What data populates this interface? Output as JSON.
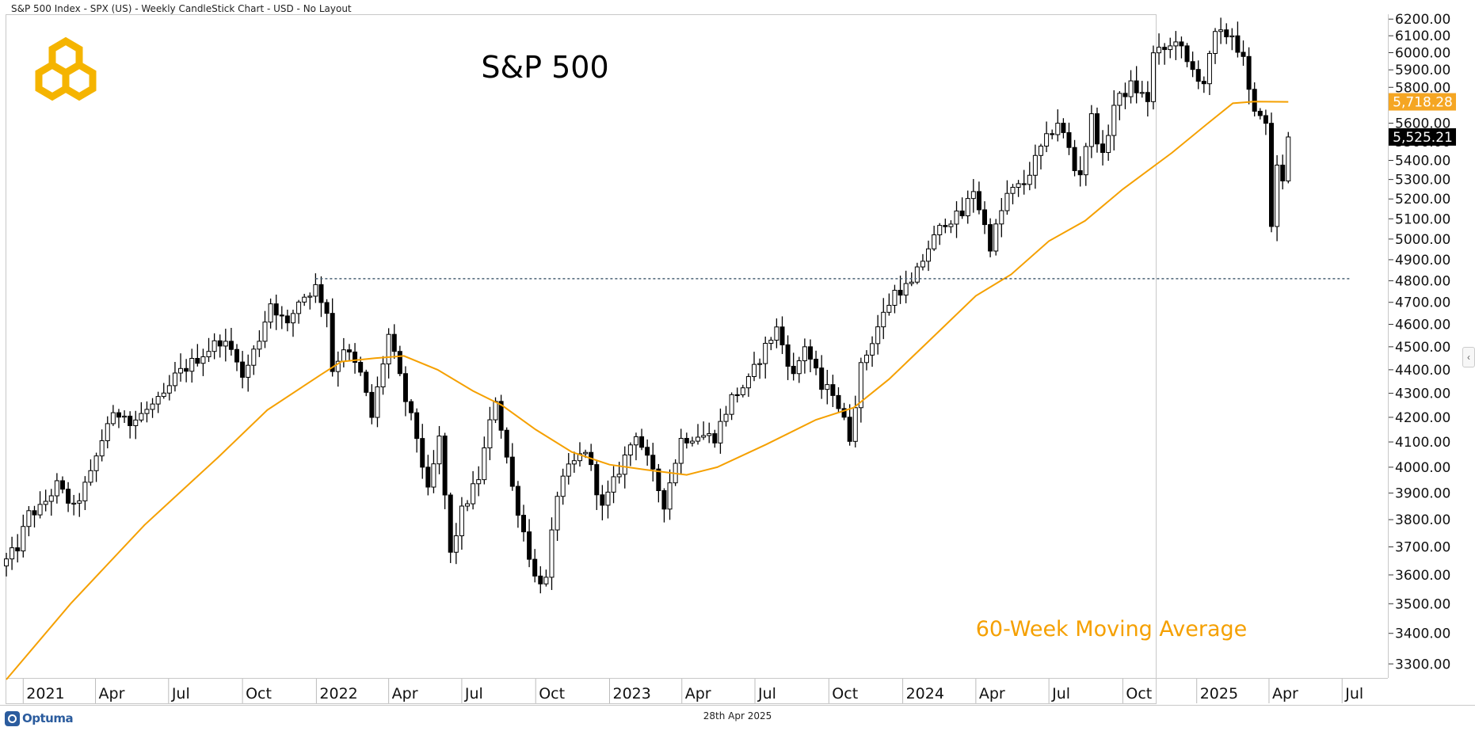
{
  "header": {
    "title": "S&P 500 Index - SPX (US) - Weekly CandleStick Chart - USD - No Layout"
  },
  "footer": {
    "date": "28th Apr 2025",
    "brand": "Optuma"
  },
  "colors": {
    "candle": "#000000",
    "ma": "#f5a000",
    "support": "#4a6276",
    "price_label_bg": "#000000",
    "ma_label_bg": "#f5a623",
    "logo": "#f5b400"
  },
  "chart_data": {
    "type": "candlestick",
    "title": "S&P 500",
    "annotation": "60-Week Moving Average",
    "y_ticks": [
      3300,
      3400,
      3500,
      3600,
      3700,
      3800,
      3900,
      4000,
      4100,
      4200,
      4300,
      4400,
      4500,
      4600,
      4700,
      4800,
      4900,
      5000,
      5100,
      5200,
      5300,
      5400,
      5500,
      5600,
      5700,
      5800,
      5900,
      6000,
      6100,
      6200
    ],
    "y_tick_labels": [
      "3300.00",
      "3400.00",
      "3500.00",
      "3600.00",
      "3700.00",
      "3800.00",
      "3900.00",
      "4000.00",
      "4100.00",
      "4200.00",
      "4300.00",
      "4400.00",
      "4500.00",
      "4600.00",
      "4700.00",
      "4800.00",
      "4900.00",
      "5000.00",
      "5100.00",
      "5200.00",
      "5300.00",
      "5400.00",
      "5500.00",
      "5600.00",
      "5700.00",
      "5800.00",
      "5900.00",
      "6000.00",
      "6100.00",
      "6200.00"
    ],
    "x_ticks": [
      {
        "label": "2021",
        "date": "2021-01"
      },
      {
        "label": "Apr",
        "date": "2021-04"
      },
      {
        "label": "Jul",
        "date": "2021-07"
      },
      {
        "label": "Oct",
        "date": "2021-10"
      },
      {
        "label": "2022",
        "date": "2022-01"
      },
      {
        "label": "Apr",
        "date": "2022-04"
      },
      {
        "label": "Jul",
        "date": "2022-07"
      },
      {
        "label": "Oct",
        "date": "2022-10"
      },
      {
        "label": "2023",
        "date": "2023-01"
      },
      {
        "label": "Apr",
        "date": "2023-04"
      },
      {
        "label": "Jul",
        "date": "2023-07"
      },
      {
        "label": "Oct",
        "date": "2023-10"
      },
      {
        "label": "2024",
        "date": "2024-01"
      },
      {
        "label": "Apr",
        "date": "2024-04"
      },
      {
        "label": "Jul",
        "date": "2024-07"
      },
      {
        "label": "Oct",
        "date": "2024-10"
      },
      {
        "label": "2025",
        "date": "2025-01"
      },
      {
        "label": "Apr",
        "date": "2025-04"
      },
      {
        "label": "Jul",
        "date": "2025-07"
      }
    ],
    "close_anchors": [
      [
        "2020-12-11",
        3650
      ],
      [
        "2020-12-25",
        3700
      ],
      [
        "2021-01-08",
        3820
      ],
      [
        "2021-01-22",
        3840
      ],
      [
        "2021-02-12",
        3930
      ],
      [
        "2021-03-05",
        3840
      ],
      [
        "2021-03-26",
        3970
      ],
      [
        "2021-04-16",
        4180
      ],
      [
        "2021-05-07",
        4230
      ],
      [
        "2021-05-14",
        4170
      ],
      [
        "2021-06-04",
        4230
      ],
      [
        "2021-06-25",
        4280
      ],
      [
        "2021-07-09",
        4370
      ],
      [
        "2021-07-23",
        4410
      ],
      [
        "2021-08-13",
        4470
      ],
      [
        "2021-09-03",
        4530
      ],
      [
        "2021-09-24",
        4460
      ],
      [
        "2021-10-01",
        4360
      ],
      [
        "2021-10-22",
        4540
      ],
      [
        "2021-11-05",
        4700
      ],
      [
        "2021-11-26",
        4590
      ],
      [
        "2021-12-10",
        4710
      ],
      [
        "2021-12-31",
        4770
      ],
      [
        "2022-01-14",
        4660
      ],
      [
        "2022-01-21",
        4400
      ],
      [
        "2022-02-04",
        4500
      ],
      [
        "2022-02-25",
        4380
      ],
      [
        "2022-03-11",
        4200
      ],
      [
        "2022-04-01",
        4550
      ],
      [
        "2022-04-22",
        4270
      ],
      [
        "2022-05-06",
        4120
      ],
      [
        "2022-05-20",
        3900
      ],
      [
        "2022-06-03",
        4110
      ],
      [
        "2022-06-17",
        3670
      ],
      [
        "2022-07-01",
        3830
      ],
      [
        "2022-07-22",
        3960
      ],
      [
        "2022-08-12",
        4280
      ],
      [
        "2022-09-02",
        3920
      ],
      [
        "2022-09-30",
        3590
      ],
      [
        "2022-10-14",
        3580
      ],
      [
        "2022-10-28",
        3900
      ],
      [
        "2022-11-11",
        3990
      ],
      [
        "2022-12-02",
        4070
      ],
      [
        "2022-12-23",
        3840
      ],
      [
        "2023-01-13",
        3990
      ],
      [
        "2023-02-03",
        4140
      ],
      [
        "2023-02-24",
        3970
      ],
      [
        "2023-03-10",
        3860
      ],
      [
        "2023-03-31",
        4110
      ],
      [
        "2023-04-21",
        4130
      ],
      [
        "2023-05-12",
        4120
      ],
      [
        "2023-06-02",
        4280
      ],
      [
        "2023-06-23",
        4350
      ],
      [
        "2023-07-14",
        4500
      ],
      [
        "2023-07-28",
        4580
      ],
      [
        "2023-08-18",
        4370
      ],
      [
        "2023-09-01",
        4510
      ],
      [
        "2023-09-22",
        4320
      ],
      [
        "2023-10-06",
        4310
      ],
      [
        "2023-10-27",
        4120
      ],
      [
        "2023-11-10",
        4410
      ],
      [
        "2023-12-01",
        4590
      ],
      [
        "2023-12-22",
        4750
      ],
      [
        "2024-01-12",
        4780
      ],
      [
        "2024-02-02",
        4960
      ],
      [
        "2024-02-23",
        5090
      ],
      [
        "2024-03-15",
        5120
      ],
      [
        "2024-03-29",
        5250
      ],
      [
        "2024-04-19",
        4970
      ],
      [
        "2024-05-10",
        5220
      ],
      [
        "2024-05-31",
        5280
      ],
      [
        "2024-06-21",
        5460
      ],
      [
        "2024-07-12",
        5610
      ],
      [
        "2024-07-26",
        5460
      ],
      [
        "2024-08-02",
        5350
      ],
      [
        "2024-08-09",
        5340
      ],
      [
        "2024-08-23",
        5630
      ],
      [
        "2024-09-06",
        5410
      ],
      [
        "2024-09-20",
        5700
      ],
      [
        "2024-10-11",
        5810
      ],
      [
        "2024-11-01",
        5730
      ],
      [
        "2024-11-08",
        5990
      ],
      [
        "2024-11-29",
        6030
      ],
      [
        "2024-12-06",
        6090
      ],
      [
        "2024-12-20",
        5930
      ],
      [
        "2025-01-10",
        5830
      ],
      [
        "2025-01-24",
        6100
      ],
      [
        "2025-02-14",
        6110
      ],
      [
        "2025-02-28",
        5950
      ],
      [
        "2025-03-07",
        5770
      ],
      [
        "2025-03-14",
        5640
      ],
      [
        "2025-03-21",
        5670
      ],
      [
        "2025-03-28",
        5580
      ],
      [
        "2025-04-04",
        5070
      ],
      [
        "2025-04-11",
        5360
      ],
      [
        "2025-04-17",
        5280
      ],
      [
        "2025-04-25",
        5525
      ]
    ],
    "last_price": 5525.21,
    "last_price_label": "5,525.21",
    "ma_value": 5718.28,
    "ma_value_label": "5,718.28",
    "ma_anchors": [
      [
        "2020-12-11",
        3250
      ],
      [
        "2021-03-01",
        3500
      ],
      [
        "2021-06-01",
        3780
      ],
      [
        "2021-09-01",
        4040
      ],
      [
        "2021-11-01",
        4230
      ],
      [
        "2022-01-07",
        4380
      ],
      [
        "2022-02-01",
        4435
      ],
      [
        "2022-03-15",
        4450
      ],
      [
        "2022-04-20",
        4460
      ],
      [
        "2022-06-01",
        4400
      ],
      [
        "2022-07-15",
        4310
      ],
      [
        "2022-08-20",
        4250
      ],
      [
        "2022-10-01",
        4150
      ],
      [
        "2022-11-15",
        4060
      ],
      [
        "2023-01-01",
        4010
      ],
      [
        "2023-02-15",
        3990
      ],
      [
        "2023-04-07",
        3970
      ],
      [
        "2023-05-15",
        4000
      ],
      [
        "2023-07-15",
        4090
      ],
      [
        "2023-09-15",
        4190
      ],
      [
        "2023-11-01",
        4240
      ],
      [
        "2023-12-15",
        4360
      ],
      [
        "2024-02-01",
        4520
      ],
      [
        "2024-04-01",
        4730
      ],
      [
        "2024-05-15",
        4830
      ],
      [
        "2024-07-01",
        4990
      ],
      [
        "2024-08-15",
        5090
      ],
      [
        "2024-10-01",
        5250
      ],
      [
        "2024-12-01",
        5440
      ],
      [
        "2025-01-15",
        5600
      ],
      [
        "2025-02-15",
        5710
      ],
      [
        "2025-03-14",
        5720
      ],
      [
        "2025-04-25",
        5718
      ]
    ],
    "support_level": 4810,
    "support_start": "2021-12-31",
    "support_end": "2025-07-10",
    "x_range": [
      "2020-12-11",
      "2025-08-25"
    ],
    "y_range": [
      3260,
      6220
    ]
  }
}
